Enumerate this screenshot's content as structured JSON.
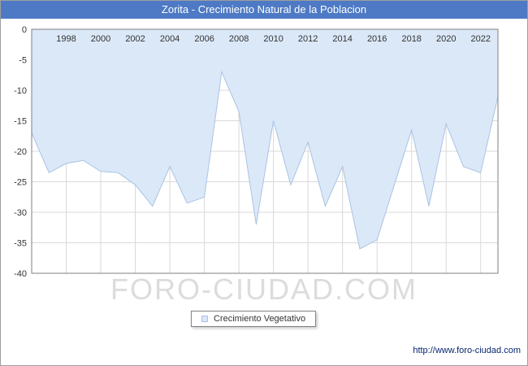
{
  "header": {
    "title": "Zorita - Crecimiento Natural de la Poblacion",
    "bg": "#4e7ac5"
  },
  "legend": {
    "label": "Crecimiento Vegetativo"
  },
  "watermark": "FORO-CIUDAD.COM",
  "footer": {
    "url": "http://www.foro-ciudad.com"
  },
  "chart_data": {
    "type": "area",
    "title": "Zorita - Crecimiento Natural de la Poblacion",
    "series": [
      {
        "name": "Crecimiento Vegetativo",
        "x": [
          1996,
          1997,
          1998,
          1999,
          2000,
          2001,
          2002,
          2003,
          2004,
          2005,
          2006,
          2007,
          2008,
          2009,
          2010,
          2011,
          2012,
          2013,
          2014,
          2015,
          2016,
          2017,
          2018,
          2019,
          2020,
          2021,
          2022,
          2023
        ],
        "values": [
          -17,
          -23.5,
          -22,
          -21.5,
          -23.3,
          -23.5,
          -25.5,
          -29,
          -22.5,
          -28.5,
          -27.5,
          -7,
          -13.5,
          -32,
          -15,
          -25.5,
          -18.5,
          -29,
          -22.5,
          -36,
          -34.5,
          -25.5,
          -16.5,
          -29,
          -15.5,
          -22.5,
          -23.5,
          -11
        ]
      }
    ],
    "xlim": [
      1996,
      2023
    ],
    "ylim": [
      -40,
      0
    ],
    "xticks": [
      1998,
      2000,
      2002,
      2004,
      2006,
      2008,
      2010,
      2012,
      2014,
      2016,
      2018,
      2020,
      2022
    ],
    "yticks": [
      0,
      -5,
      -10,
      -15,
      -20,
      -25,
      -30,
      -35,
      -40
    ],
    "grid": true,
    "legend_position": "bottom",
    "xlabel": "",
    "ylabel": "",
    "colors": {
      "fill": "#dbe8f8",
      "stroke": "#a8c4e4",
      "grid": "#d9d9d9",
      "plot_border": "#7f7f7f"
    }
  }
}
